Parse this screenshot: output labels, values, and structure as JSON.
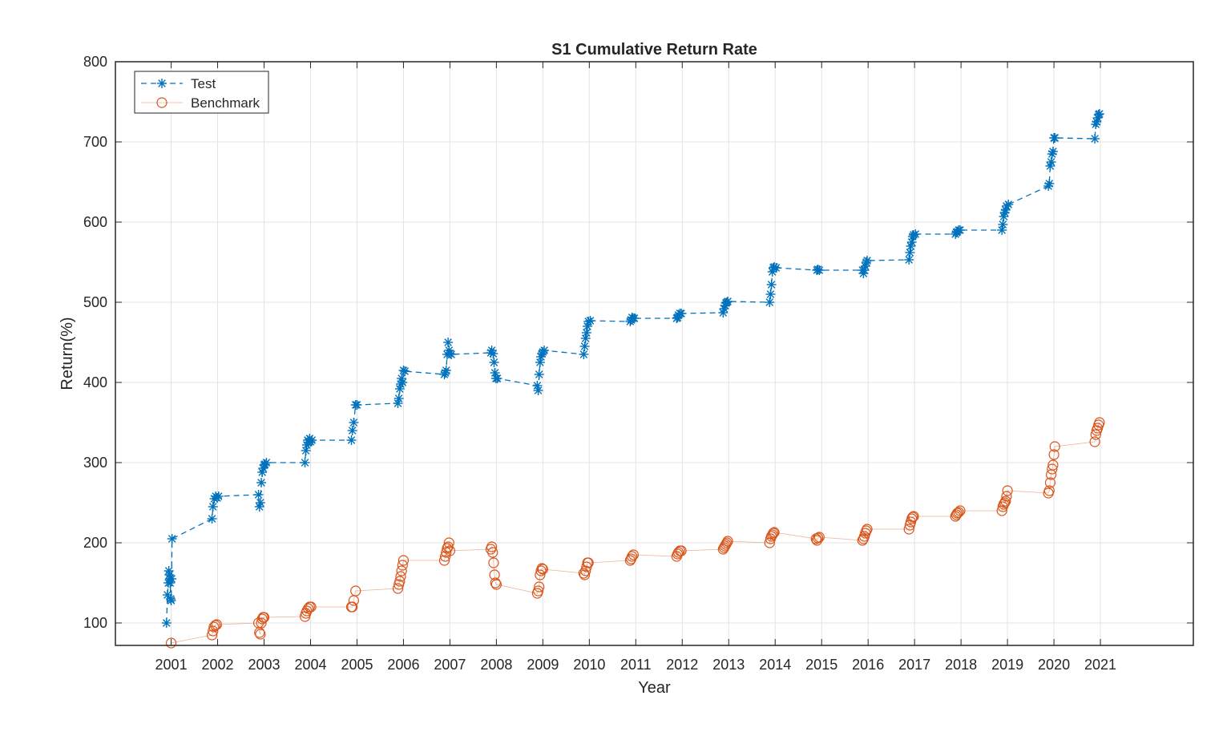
{
  "chart_data": {
    "type": "line",
    "title": "S1 Cumulative Return Rate",
    "xlabel": "Year",
    "ylabel": "Return(%)",
    "xlim": [
      1999.8,
      2023.0
    ],
    "ylim": [
      72,
      800
    ],
    "xticks": [
      "2001",
      "2002",
      "2003",
      "2004",
      "2005",
      "2006",
      "2007",
      "2008",
      "2009",
      "2010",
      "2011",
      "2012",
      "2013",
      "2014",
      "2015",
      "2016",
      "2017",
      "2018",
      "2019",
      "2020",
      "2021"
    ],
    "yticks": [
      100,
      200,
      300,
      400,
      500,
      600,
      700,
      800
    ],
    "grid": true,
    "legend_position": "top-left",
    "series": [
      {
        "name": "Test",
        "color": "#0072BD",
        "line": "dashed",
        "marker": "asterisk",
        "points": [
          [
            2000.9,
            100
          ],
          [
            2000.92,
            135
          ],
          [
            2000.94,
            150
          ],
          [
            2000.95,
            165
          ],
          [
            2000.96,
            160
          ],
          [
            2000.97,
            155
          ],
          [
            2000.98,
            150
          ],
          [
            2000.99,
            130
          ],
          [
            2001.0,
            128
          ],
          [
            2001.01,
            155
          ],
          [
            2001.02,
            205
          ],
          [
            2001.88,
            230
          ],
          [
            2001.9,
            245
          ],
          [
            2001.93,
            255
          ],
          [
            2001.96,
            258
          ],
          [
            2001.99,
            256
          ],
          [
            2002.02,
            258
          ],
          [
            2002.88,
            260
          ],
          [
            2002.9,
            245
          ],
          [
            2002.92,
            250
          ],
          [
            2002.94,
            275
          ],
          [
            2002.96,
            288
          ],
          [
            2002.98,
            293
          ],
          [
            2003.0,
            297
          ],
          [
            2003.02,
            298
          ],
          [
            2003.05,
            300
          ],
          [
            2003.88,
            300
          ],
          [
            2003.9,
            315
          ],
          [
            2003.92,
            322
          ],
          [
            2003.94,
            328
          ],
          [
            2003.96,
            325
          ],
          [
            2003.98,
            330
          ],
          [
            2004.0,
            326
          ],
          [
            2004.03,
            328
          ],
          [
            2004.88,
            328
          ],
          [
            2004.9,
            340
          ],
          [
            2004.93,
            350
          ],
          [
            2004.97,
            372
          ],
          [
            2005.0,
            372
          ],
          [
            2005.88,
            374
          ],
          [
            2005.9,
            380
          ],
          [
            2005.92,
            392
          ],
          [
            2005.94,
            398
          ],
          [
            2005.96,
            405
          ],
          [
            2005.98,
            400
          ],
          [
            2006.0,
            415
          ],
          [
            2006.03,
            414
          ],
          [
            2006.88,
            410
          ],
          [
            2006.9,
            412
          ],
          [
            2006.92,
            415
          ],
          [
            2006.94,
            435
          ],
          [
            2006.96,
            450
          ],
          [
            2006.98,
            440
          ],
          [
            2007.0,
            436
          ],
          [
            2007.03,
            435
          ],
          [
            2007.88,
            437
          ],
          [
            2007.9,
            440
          ],
          [
            2007.93,
            436
          ],
          [
            2007.95,
            425
          ],
          [
            2007.97,
            412
          ],
          [
            2007.99,
            405
          ],
          [
            2008.02,
            405
          ],
          [
            2008.88,
            396
          ],
          [
            2008.9,
            390
          ],
          [
            2008.92,
            410
          ],
          [
            2008.94,
            425
          ],
          [
            2008.96,
            432
          ],
          [
            2008.98,
            436
          ],
          [
            2009.0,
            438
          ],
          [
            2009.03,
            440
          ],
          [
            2009.88,
            435
          ],
          [
            2009.9,
            445
          ],
          [
            2009.92,
            455
          ],
          [
            2009.94,
            462
          ],
          [
            2009.96,
            470
          ],
          [
            2009.98,
            476
          ],
          [
            2010.02,
            477
          ],
          [
            2010.88,
            476
          ],
          [
            2010.9,
            478
          ],
          [
            2010.92,
            481
          ],
          [
            2010.94,
            480
          ],
          [
            2010.97,
            480
          ],
          [
            2011.88,
            480
          ],
          [
            2011.9,
            481
          ],
          [
            2011.92,
            484
          ],
          [
            2011.95,
            486
          ],
          [
            2011.98,
            486
          ],
          [
            2012.88,
            487
          ],
          [
            2012.9,
            492
          ],
          [
            2012.92,
            496
          ],
          [
            2012.94,
            499
          ],
          [
            2012.96,
            500
          ],
          [
            2012.98,
            501
          ],
          [
            2013.88,
            500
          ],
          [
            2013.9,
            510
          ],
          [
            2013.92,
            522
          ],
          [
            2013.94,
            538
          ],
          [
            2013.96,
            543
          ],
          [
            2013.98,
            544
          ],
          [
            2014.02,
            543
          ],
          [
            2014.9,
            540
          ],
          [
            2014.92,
            541
          ],
          [
            2014.95,
            540
          ],
          [
            2015.88,
            540
          ],
          [
            2015.9,
            536
          ],
          [
            2015.92,
            540
          ],
          [
            2015.94,
            545
          ],
          [
            2015.96,
            550
          ],
          [
            2015.98,
            552
          ],
          [
            2016.88,
            553
          ],
          [
            2016.9,
            562
          ],
          [
            2016.92,
            570
          ],
          [
            2016.94,
            575
          ],
          [
            2016.96,
            582
          ],
          [
            2016.98,
            584
          ],
          [
            2017.02,
            585
          ],
          [
            2017.88,
            585
          ],
          [
            2017.9,
            587
          ],
          [
            2017.92,
            588
          ],
          [
            2017.95,
            590
          ],
          [
            2017.98,
            590
          ],
          [
            2018.88,
            590
          ],
          [
            2018.9,
            597
          ],
          [
            2018.92,
            607
          ],
          [
            2018.94,
            612
          ],
          [
            2018.96,
            615
          ],
          [
            2018.98,
            620
          ],
          [
            2019.02,
            622
          ],
          [
            2019.88,
            645
          ],
          [
            2019.9,
            648
          ],
          [
            2019.92,
            670
          ],
          [
            2019.94,
            675
          ],
          [
            2019.96,
            685
          ],
          [
            2019.98,
            688
          ],
          [
            2020.0,
            705
          ],
          [
            2020.02,
            705
          ],
          [
            2020.88,
            704
          ],
          [
            2020.9,
            722
          ],
          [
            2020.92,
            725
          ],
          [
            2020.94,
            730
          ],
          [
            2020.96,
            734
          ],
          [
            2020.98,
            735
          ]
        ]
      },
      {
        "name": "Benchmark",
        "color": "#D95319",
        "line": "solid",
        "marker": "circle",
        "points": [
          [
            2001.0,
            75
          ],
          [
            2001.88,
            85
          ],
          [
            2001.9,
            90
          ],
          [
            2001.92,
            95
          ],
          [
            2001.95,
            97
          ],
          [
            2001.98,
            98
          ],
          [
            2002.88,
            100
          ],
          [
            2002.9,
            88
          ],
          [
            2002.92,
            86
          ],
          [
            2002.94,
            100
          ],
          [
            2002.96,
            105
          ],
          [
            2002.98,
            107
          ],
          [
            2003.0,
            107
          ],
          [
            2003.88,
            108
          ],
          [
            2003.9,
            112
          ],
          [
            2003.92,
            115
          ],
          [
            2003.95,
            118
          ],
          [
            2003.98,
            120
          ],
          [
            2004.01,
            120
          ],
          [
            2004.88,
            120
          ],
          [
            2004.9,
            120
          ],
          [
            2004.93,
            128
          ],
          [
            2004.97,
            140
          ],
          [
            2005.88,
            143
          ],
          [
            2005.9,
            148
          ],
          [
            2005.92,
            152
          ],
          [
            2005.94,
            158
          ],
          [
            2005.96,
            165
          ],
          [
            2005.98,
            172
          ],
          [
            2006.0,
            178
          ],
          [
            2006.88,
            178
          ],
          [
            2006.9,
            183
          ],
          [
            2006.92,
            188
          ],
          [
            2006.94,
            193
          ],
          [
            2006.96,
            195
          ],
          [
            2006.98,
            200
          ],
          [
            2007.0,
            190
          ],
          [
            2007.88,
            192
          ],
          [
            2007.9,
            195
          ],
          [
            2007.92,
            188
          ],
          [
            2007.94,
            175
          ],
          [
            2007.96,
            160
          ],
          [
            2007.98,
            150
          ],
          [
            2008.0,
            148
          ],
          [
            2008.88,
            137
          ],
          [
            2008.9,
            140
          ],
          [
            2008.92,
            145
          ],
          [
            2008.94,
            160
          ],
          [
            2008.96,
            165
          ],
          [
            2008.98,
            168
          ],
          [
            2009.0,
            167
          ],
          [
            2009.88,
            162
          ],
          [
            2009.9,
            160
          ],
          [
            2009.92,
            165
          ],
          [
            2009.94,
            170
          ],
          [
            2009.96,
            175
          ],
          [
            2009.98,
            175
          ],
          [
            2010.88,
            178
          ],
          [
            2010.9,
            180
          ],
          [
            2010.92,
            183
          ],
          [
            2010.95,
            185
          ],
          [
            2011.88,
            183
          ],
          [
            2011.9,
            186
          ],
          [
            2011.92,
            188
          ],
          [
            2011.95,
            190
          ],
          [
            2011.98,
            190
          ],
          [
            2012.88,
            192
          ],
          [
            2012.9,
            194
          ],
          [
            2012.92,
            196
          ],
          [
            2012.94,
            198
          ],
          [
            2012.96,
            200
          ],
          [
            2012.98,
            202
          ],
          [
            2013.88,
            200
          ],
          [
            2013.9,
            205
          ],
          [
            2013.92,
            208
          ],
          [
            2013.94,
            210
          ],
          [
            2013.96,
            212
          ],
          [
            2013.98,
            213
          ],
          [
            2014.88,
            205
          ],
          [
            2014.9,
            203
          ],
          [
            2014.92,
            206
          ],
          [
            2014.95,
            207
          ],
          [
            2015.88,
            203
          ],
          [
            2015.9,
            205
          ],
          [
            2015.92,
            208
          ],
          [
            2015.94,
            212
          ],
          [
            2015.96,
            215
          ],
          [
            2015.98,
            217
          ],
          [
            2016.88,
            217
          ],
          [
            2016.9,
            222
          ],
          [
            2016.92,
            226
          ],
          [
            2016.94,
            230
          ],
          [
            2016.96,
            232
          ],
          [
            2016.98,
            233
          ],
          [
            2017.88,
            233
          ],
          [
            2017.9,
            235
          ],
          [
            2017.92,
            237
          ],
          [
            2017.95,
            238
          ],
          [
            2017.98,
            240
          ],
          [
            2018.88,
            240
          ],
          [
            2018.9,
            245
          ],
          [
            2018.92,
            248
          ],
          [
            2018.94,
            250
          ],
          [
            2018.96,
            252
          ],
          [
            2018.98,
            258
          ],
          [
            2019.0,
            265
          ],
          [
            2019.88,
            262
          ],
          [
            2019.9,
            265
          ],
          [
            2019.92,
            275
          ],
          [
            2019.94,
            285
          ],
          [
            2019.96,
            292
          ],
          [
            2019.98,
            297
          ],
          [
            2020.0,
            310
          ],
          [
            2020.02,
            320
          ],
          [
            2020.88,
            326
          ],
          [
            2020.9,
            335
          ],
          [
            2020.92,
            340
          ],
          [
            2020.94,
            343
          ],
          [
            2020.96,
            347
          ],
          [
            2020.98,
            350
          ]
        ]
      }
    ]
  }
}
